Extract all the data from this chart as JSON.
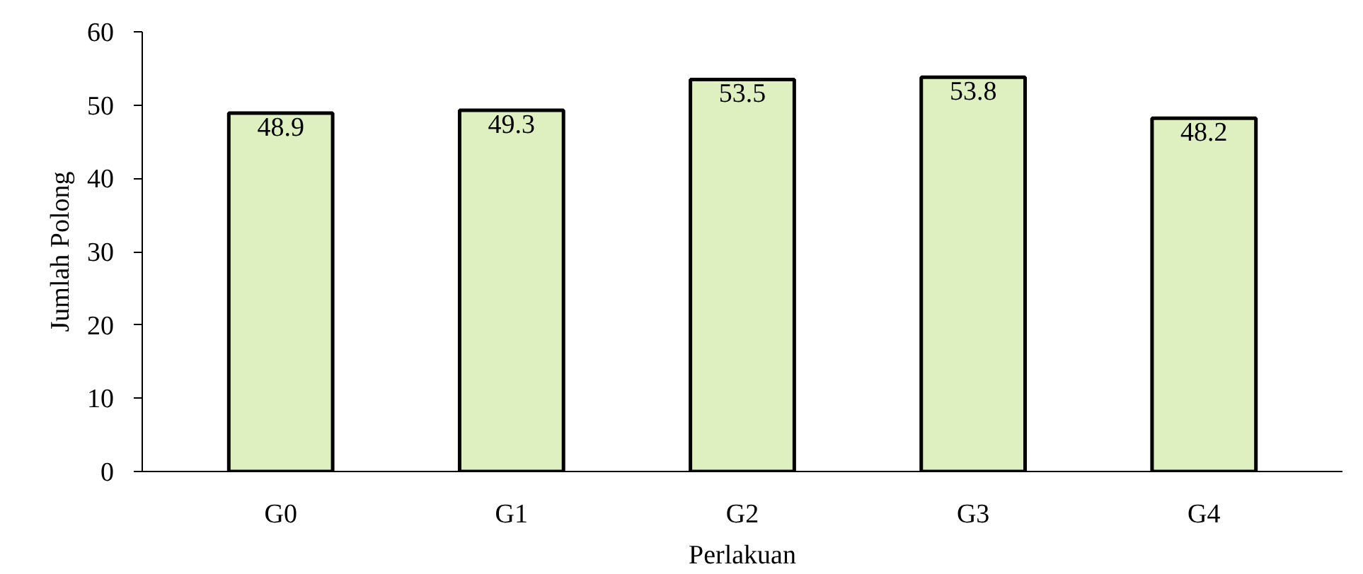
{
  "chart_data": {
    "type": "bar",
    "xlabel": "Perlakuan",
    "ylabel": "Jumlah Polong",
    "categories": [
      "G0",
      "G1",
      "G2",
      "G3",
      "G4"
    ],
    "values": [
      48.9,
      49.3,
      53.5,
      53.8,
      48.2
    ],
    "color": "#dff0c0",
    "ylim": [
      0,
      60
    ],
    "yticks": [
      0,
      10,
      20,
      30,
      40,
      50,
      60
    ],
    "grid": false,
    "data_labels": true
  }
}
